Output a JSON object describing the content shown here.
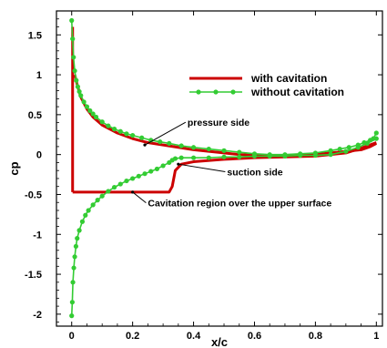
{
  "chart_data": {
    "type": "line",
    "title": "",
    "xlabel": "x/c",
    "ylabel": "cp",
    "xlim": [
      -0.05,
      1.02
    ],
    "ylim": [
      -2.15,
      1.8
    ],
    "xticks": [
      {
        "value": 0,
        "label": "0"
      },
      {
        "value": 0.2,
        "label": "0.2"
      },
      {
        "value": 0.4,
        "label": "0.4"
      },
      {
        "value": 0.6,
        "label": "0.6"
      },
      {
        "value": 0.8,
        "label": "0.8"
      },
      {
        "value": 1,
        "label": "1"
      }
    ],
    "yticks": [
      {
        "value": 1.5,
        "label": "1.5"
      },
      {
        "value": 1,
        "label": "1"
      },
      {
        "value": 0.5,
        "label": "0.5"
      },
      {
        "value": 0,
        "label": "0"
      },
      {
        "value": -0.5,
        "label": "-0.5"
      },
      {
        "value": -1,
        "label": "-1"
      },
      {
        "value": -1.5,
        "label": "-1.5"
      },
      {
        "value": -2,
        "label": "-2"
      }
    ],
    "grid": false,
    "legend_position": "top-right",
    "series": [
      {
        "name": "with cavitation",
        "color": "#cc0000",
        "marker": "none",
        "segments": [
          {
            "x": [
              0.01,
              0.02,
              0.03,
              0.05,
              0.07,
              0.1,
              0.15,
              0.2,
              0.25,
              0.3,
              0.35,
              0.4,
              0.45,
              0.5,
              0.55,
              0.6,
              0.65,
              0.7,
              0.75,
              0.8,
              0.85,
              0.9,
              0.95,
              0.98,
              1.0
            ],
            "y": [
              1.0,
              0.85,
              0.72,
              0.57,
              0.47,
              0.37,
              0.27,
              0.2,
              0.15,
              0.12,
              0.09,
              0.06,
              0.04,
              0.02,
              0.0,
              -0.01,
              -0.02,
              -0.02,
              -0.01,
              0.0,
              0.02,
              0.04,
              0.06,
              0.1,
              0.14
            ]
          },
          {
            "x": [
              0.003,
              0.32,
              0.33,
              0.34,
              0.36,
              0.4,
              0.5,
              0.6,
              0.7,
              0.8,
              0.9,
              0.95,
              1.0
            ],
            "y": [
              -0.47,
              -0.47,
              -0.4,
              -0.2,
              -0.12,
              -0.09,
              -0.06,
              -0.04,
              -0.03,
              -0.02,
              0.02,
              0.08,
              0.15
            ]
          },
          {
            "x": [
              0.003,
              0.003
            ],
            "y": [
              -0.47,
              1.6
            ]
          }
        ]
      },
      {
        "name": "without cavitation",
        "color": "#33cc33",
        "marker": "circle",
        "segments": [
          {
            "x": [
              0.0,
              0.003,
              0.006,
              0.01,
              0.015,
              0.02,
              0.025,
              0.03,
              0.04,
              0.05,
              0.06,
              0.07,
              0.08,
              0.1,
              0.12,
              0.14,
              0.16,
              0.18,
              0.2,
              0.23,
              0.26,
              0.29,
              0.32,
              0.36,
              0.4,
              0.45,
              0.5,
              0.55,
              0.6,
              0.65,
              0.7,
              0.75,
              0.8,
              0.85,
              0.88,
              0.91,
              0.94,
              0.96,
              0.98,
              0.99,
              1.0
            ],
            "y": [
              1.68,
              1.45,
              1.22,
              1.05,
              0.93,
              0.85,
              0.79,
              0.74,
              0.66,
              0.6,
              0.55,
              0.51,
              0.47,
              0.41,
              0.36,
              0.32,
              0.29,
              0.26,
              0.24,
              0.21,
              0.18,
              0.16,
              0.14,
              0.11,
              0.09,
              0.07,
              0.05,
              0.03,
              0.01,
              0.0,
              0.0,
              0.01,
              0.02,
              0.05,
              0.07,
              0.09,
              0.12,
              0.15,
              0.18,
              0.2,
              0.27
            ]
          },
          {
            "x": [
              0.0,
              0.002,
              0.004,
              0.007,
              0.01,
              0.014,
              0.018,
              0.025,
              0.035,
              0.045,
              0.055,
              0.07,
              0.085,
              0.1,
              0.12,
              0.14,
              0.16,
              0.18,
              0.2,
              0.22,
              0.24,
              0.26,
              0.28,
              0.3,
              0.32,
              0.33,
              0.34,
              0.36,
              0.4,
              0.45,
              0.5,
              0.55,
              0.6,
              0.65,
              0.7,
              0.75,
              0.8,
              0.85,
              0.9,
              0.94,
              0.97,
              1.0
            ],
            "y": [
              -2.02,
              -1.85,
              -1.6,
              -1.42,
              -1.28,
              -1.15,
              -1.05,
              -0.95,
              -0.84,
              -0.76,
              -0.7,
              -0.63,
              -0.57,
              -0.52,
              -0.46,
              -0.41,
              -0.37,
              -0.33,
              -0.3,
              -0.27,
              -0.24,
              -0.21,
              -0.18,
              -0.14,
              -0.1,
              -0.07,
              -0.05,
              -0.04,
              -0.04,
              -0.04,
              -0.03,
              -0.03,
              -0.02,
              -0.02,
              -0.02,
              -0.01,
              -0.01,
              0.0,
              0.04,
              0.09,
              0.14,
              0.2
            ]
          }
        ]
      }
    ],
    "annotations": [
      {
        "text": "pressure side",
        "x": 0.38,
        "y": 0.36,
        "arrow_to": [
          0.24,
          0.12
        ]
      },
      {
        "text": "suction side",
        "x": 0.51,
        "y": -0.26,
        "arrow_to": [
          0.35,
          -0.12
        ]
      },
      {
        "text": "Cavitation region over the upper surface",
        "x": 0.25,
        "y": -0.65,
        "arrow_to": [
          0.2,
          -0.47
        ]
      }
    ]
  }
}
